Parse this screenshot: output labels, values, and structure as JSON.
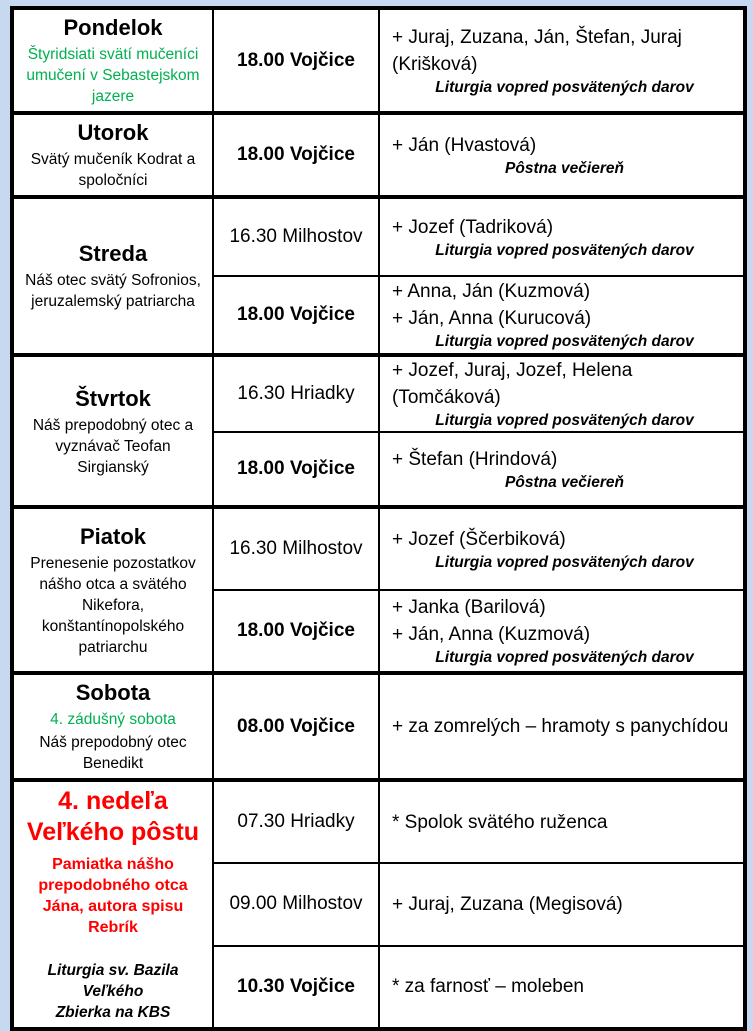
{
  "colors": {
    "page_background": "#c6d9f1",
    "cell_background": "#ffffff",
    "border": "#000000",
    "feast_green": "#00b050",
    "sunday_red": "#ff0000"
  },
  "days": [
    {
      "name": "Pondelok",
      "feast": "Štyridsiati svätí mučeníci umučení v Sebastejskom jazere",
      "slots": [
        {
          "time": "18.00 Vojčice",
          "intentions": [
            "+ Juraj, Zuzana, Ján, Štefan, Juraj (Krišková)"
          ],
          "note": "Liturgia vopred posvätených darov"
        }
      ]
    },
    {
      "name": "Utorok",
      "feast": "Svätý mučeník Kodrat a spoločníci",
      "slots": [
        {
          "time": "18.00 Vojčice",
          "intentions": [
            "+ Ján (Hvastová)"
          ],
          "note": "Pôstna večiereň"
        }
      ]
    },
    {
      "name": "Streda",
      "feast": "Náš otec svätý Sofronios, jeruzalemský patriarcha",
      "slots": [
        {
          "time": "16.30 Milhostov",
          "intentions": [
            "+ Jozef (Tadriková)"
          ],
          "note": "Liturgia vopred posvätených darov"
        },
        {
          "time": "18.00 Vojčice",
          "intentions": [
            "+ Anna, Ján (Kuzmová)",
            "+ Ján, Anna (Kurucová)"
          ],
          "note": "Liturgia vopred posvätených darov"
        }
      ]
    },
    {
      "name": "Štvrtok",
      "feast": "Náš prepodobný otec a vyznávač Teofan Sirgianský",
      "slots": [
        {
          "time": "16.30 Hriadky",
          "intentions": [
            "+ Jozef, Juraj, Jozef, Helena (Tomčáková)"
          ],
          "note": "Liturgia vopred posvätených darov"
        },
        {
          "time": "18.00 Vojčice",
          "intentions": [
            "+ Štefan (Hrindová)"
          ],
          "note": "Pôstna večiereň"
        }
      ]
    },
    {
      "name": "Piatok",
      "feast": "Prenesenie pozostatkov nášho otca a svätého Nikefora, konštantínopolského patriarchu",
      "slots": [
        {
          "time": "16.30 Milhostov",
          "intentions": [
            "+ Jozef (Ščerbiková)"
          ],
          "note": "Liturgia vopred posvätených darov"
        },
        {
          "time": "18.00 Vojčice",
          "intentions": [
            "+ Janka (Barilová)",
            "+ Ján, Anna (Kuzmová)"
          ],
          "note": "Liturgia vopred posvätených darov"
        }
      ]
    },
    {
      "name": "Sobota",
      "special": "4. zádušný sobota",
      "feast": "Náš prepodobný otec Benedikt",
      "slots": [
        {
          "time": "08.00 Vojčice",
          "intentions": [
            "+ za zomrelých – hramoty s panychídou"
          ]
        }
      ]
    },
    {
      "name": "4. nedeľa Veľkého pôstu",
      "feast": "Pamiatka nášho prepodobného otca Jána, autora spisu Rebrík",
      "liturgy": [
        "Liturgia sv. Bazila Veľkého",
        "Zbierka na KBS"
      ],
      "slots": [
        {
          "time": "07.30 Hriadky",
          "intentions": [
            "* Spolok svätého ruženca"
          ]
        },
        {
          "time": "09.00 Milhostov",
          "intentions": [
            "+ Juraj, Zuzana (Megisová)"
          ]
        },
        {
          "time": "10.30 Vojčice",
          "intentions": [
            "* za farnosť – moleben"
          ]
        }
      ]
    }
  ]
}
